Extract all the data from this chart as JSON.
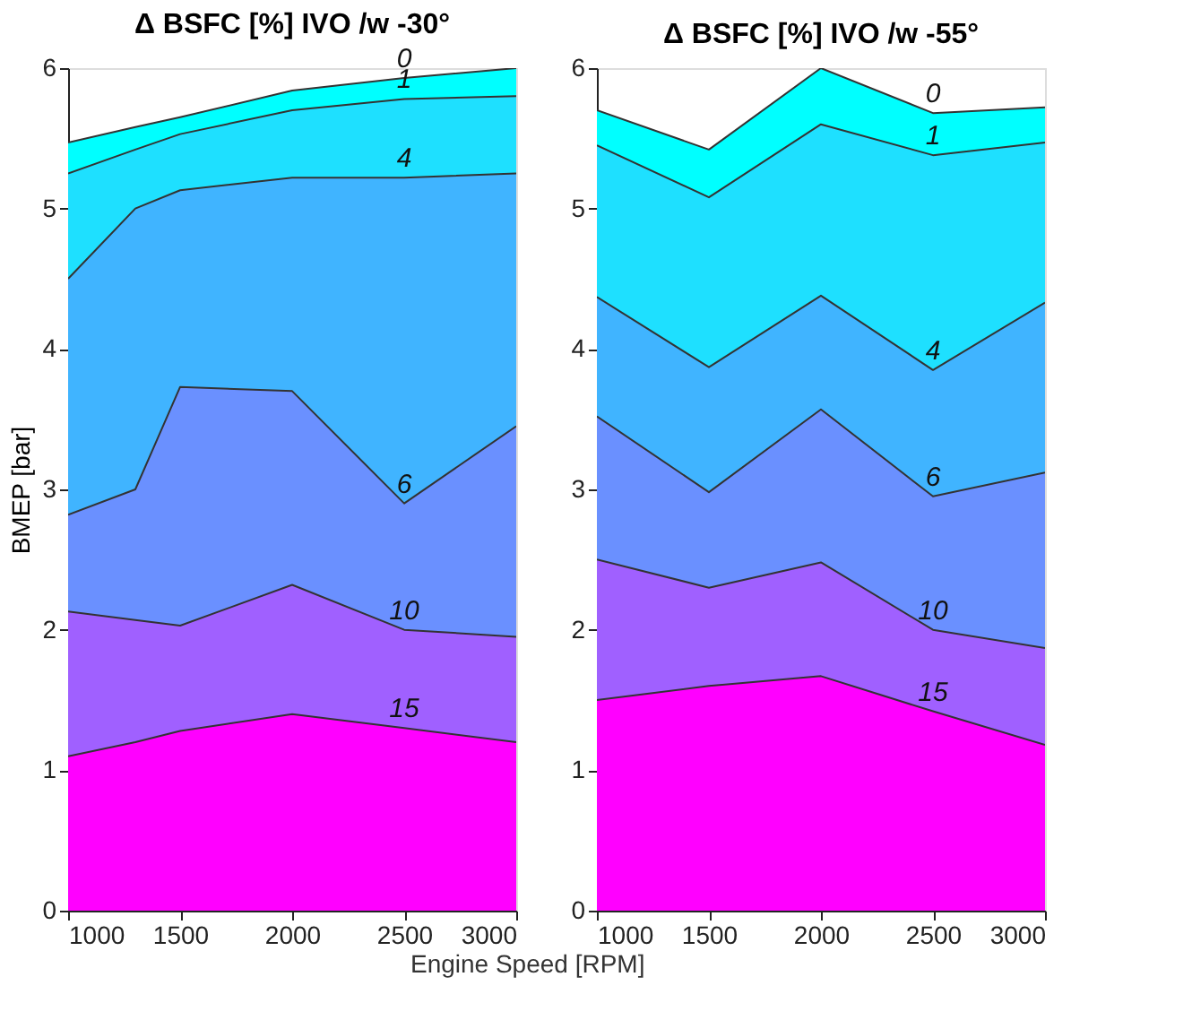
{
  "chart_data": [
    {
      "type": "area",
      "title": "Δ BSFC [%] IVO /w -30°",
      "xlabel": "Engine Speed [RPM]",
      "ylabel": "BMEP [bar]",
      "x": [
        1000,
        1300,
        1500,
        2000,
        2500,
        3000
      ],
      "xlim": [
        1000,
        3000
      ],
      "xticks": [
        1000,
        1500,
        2000,
        2500,
        3000
      ],
      "ylim": [
        0,
        6
      ],
      "yticks": [
        0,
        1,
        2,
        3,
        4,
        5,
        6
      ],
      "grid": false,
      "series": [
        {
          "name": "0",
          "color": "#00ffff",
          "values": [
            5.47,
            5.58,
            5.65,
            5.84,
            5.93,
            6.0
          ]
        },
        {
          "name": "1",
          "color": "#1ee0ff",
          "values": [
            5.25,
            5.42,
            5.53,
            5.7,
            5.78,
            5.8
          ]
        },
        {
          "name": "4",
          "color": "#40b4ff",
          "values": [
            4.5,
            5.0,
            5.13,
            5.22,
            5.22,
            5.25
          ]
        },
        {
          "name": "6",
          "color": "#6a90ff",
          "values": [
            2.82,
            3.0,
            3.73,
            3.7,
            2.9,
            3.45
          ]
        },
        {
          "name": "10",
          "color": "#a060ff",
          "values": [
            2.13,
            2.07,
            2.03,
            2.32,
            2.0,
            1.95
          ]
        },
        {
          "name": "15",
          "color": "#ff00ff",
          "values": [
            1.1,
            1.2,
            1.28,
            1.4,
            1.3,
            1.2
          ]
        }
      ]
    },
    {
      "type": "area",
      "title": "Δ BSFC [%] IVO /w -55°",
      "x": [
        1000,
        1500,
        2000,
        2500,
        3000
      ],
      "xlim": [
        1000,
        3000
      ],
      "xticks": [
        1000,
        1500,
        2000,
        2500,
        3000
      ],
      "ylim": [
        0,
        6
      ],
      "yticks": [
        0,
        1,
        2,
        3,
        4,
        5,
        6
      ],
      "grid": false,
      "series": [
        {
          "name": "0",
          "color": "#00ffff",
          "values": [
            5.7,
            5.42,
            6.0,
            5.68,
            5.72
          ]
        },
        {
          "name": "1",
          "color": "#1ee0ff",
          "values": [
            5.45,
            5.08,
            5.6,
            5.38,
            5.47
          ]
        },
        {
          "name": "4",
          "color": "#40b4ff",
          "values": [
            4.37,
            3.87,
            4.38,
            3.85,
            4.33
          ]
        },
        {
          "name": "6",
          "color": "#6a90ff",
          "values": [
            3.52,
            2.98,
            3.57,
            2.95,
            3.12
          ]
        },
        {
          "name": "10",
          "color": "#a060ff",
          "values": [
            2.5,
            2.3,
            2.48,
            2.0,
            1.87
          ]
        },
        {
          "name": "15",
          "color": "#ff00ff",
          "values": [
            1.5,
            1.6,
            1.67,
            1.42,
            1.18
          ]
        }
      ]
    }
  ]
}
